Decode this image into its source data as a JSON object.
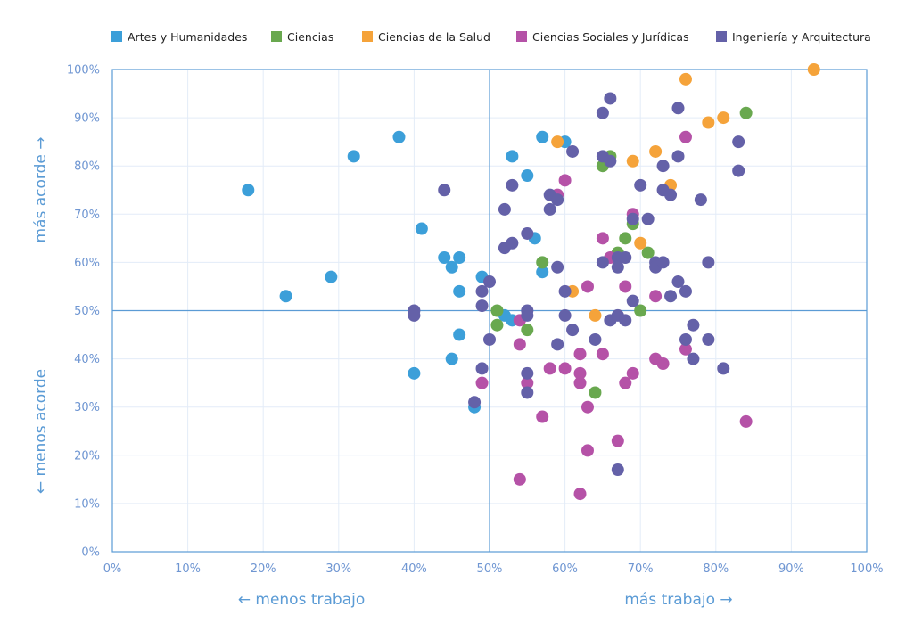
{
  "chart_data": {
    "type": "scatter",
    "xlim": [
      0,
      100
    ],
    "ylim": [
      0,
      100
    ],
    "grid": true,
    "legend_position": "top",
    "x_ticks": [
      "0%",
      "10%",
      "20%",
      "30%",
      "40%",
      "50%",
      "60%",
      "70%",
      "80%",
      "90%",
      "100%"
    ],
    "y_ticks": [
      "0%",
      "10%",
      "20%",
      "30%",
      "40%",
      "50%",
      "60%",
      "70%",
      "80%",
      "90%",
      "100%"
    ],
    "x_label_left": "← menos trabajo",
    "x_label_right": "más trabajo →",
    "y_label_top": "más acorde →",
    "y_label_bottom": "← menos acorde",
    "reference_lines": {
      "x": 50,
      "y": 50
    },
    "series": [
      {
        "name": "Artes y Humanidades",
        "color": "#3c9fd9",
        "points": [
          [
            18,
            75
          ],
          [
            23,
            53
          ],
          [
            29,
            57
          ],
          [
            32,
            82
          ],
          [
            38,
            86
          ],
          [
            40,
            37
          ],
          [
            41,
            67
          ],
          [
            44,
            61
          ],
          [
            45,
            59
          ],
          [
            45,
            40
          ],
          [
            46,
            61
          ],
          [
            46,
            54
          ],
          [
            46,
            45
          ],
          [
            48,
            30
          ],
          [
            49,
            57
          ],
          [
            52,
            49
          ],
          [
            53,
            48
          ],
          [
            53,
            82
          ],
          [
            55,
            78
          ],
          [
            56,
            65
          ],
          [
            57,
            58
          ],
          [
            57,
            86
          ],
          [
            60,
            85
          ]
        ]
      },
      {
        "name": "Ciencias",
        "color": "#69a84f",
        "points": [
          [
            51,
            50
          ],
          [
            51,
            47
          ],
          [
            55,
            46
          ],
          [
            57,
            60
          ],
          [
            64,
            33
          ],
          [
            65,
            80
          ],
          [
            66,
            82
          ],
          [
            67,
            62
          ],
          [
            68,
            65
          ],
          [
            69,
            68
          ],
          [
            70,
            50
          ],
          [
            71,
            62
          ],
          [
            84,
            91
          ]
        ]
      },
      {
        "name": "Ciencias de la Salud",
        "color": "#f5a33a",
        "points": [
          [
            59,
            85
          ],
          [
            61,
            54
          ],
          [
            64,
            49
          ],
          [
            69,
            81
          ],
          [
            70,
            64
          ],
          [
            72,
            83
          ],
          [
            74,
            76
          ],
          [
            76,
            98
          ],
          [
            79,
            89
          ],
          [
            81,
            90
          ],
          [
            93,
            100
          ]
        ]
      },
      {
        "name": "Ciencias Sociales y Jurídicas",
        "color": "#b552a7",
        "points": [
          [
            49,
            35
          ],
          [
            54,
            15
          ],
          [
            54,
            43
          ],
          [
            54,
            48
          ],
          [
            55,
            35
          ],
          [
            57,
            28
          ],
          [
            58,
            38
          ],
          [
            59,
            74
          ],
          [
            60,
            38
          ],
          [
            60,
            77
          ],
          [
            62,
            12
          ],
          [
            62,
            35
          ],
          [
            62,
            37
          ],
          [
            62,
            41
          ],
          [
            63,
            30
          ],
          [
            63,
            21
          ],
          [
            63,
            55
          ],
          [
            65,
            41
          ],
          [
            65,
            65
          ],
          [
            66,
            61
          ],
          [
            67,
            23
          ],
          [
            68,
            35
          ],
          [
            68,
            55
          ],
          [
            69,
            37
          ],
          [
            69,
            70
          ],
          [
            72,
            40
          ],
          [
            72,
            53
          ],
          [
            73,
            39
          ],
          [
            76,
            42
          ],
          [
            76,
            86
          ],
          [
            84,
            27
          ]
        ]
      },
      {
        "name": "Ingeniería y Arquitectura",
        "color": "#6461a8",
        "points": [
          [
            40,
            50
          ],
          [
            40,
            49
          ],
          [
            44,
            75
          ],
          [
            48,
            31
          ],
          [
            49,
            38
          ],
          [
            49,
            51
          ],
          [
            49,
            54
          ],
          [
            50,
            44
          ],
          [
            50,
            56
          ],
          [
            52,
            71
          ],
          [
            52,
            63
          ],
          [
            53,
            76
          ],
          [
            53,
            64
          ],
          [
            55,
            66
          ],
          [
            55,
            50
          ],
          [
            55,
            49
          ],
          [
            55,
            37
          ],
          [
            55,
            33
          ],
          [
            58,
            74
          ],
          [
            58,
            71
          ],
          [
            59,
            73
          ],
          [
            59,
            59
          ],
          [
            59,
            43
          ],
          [
            60,
            54
          ],
          [
            60,
            49
          ],
          [
            61,
            83
          ],
          [
            61,
            46
          ],
          [
            64,
            44
          ],
          [
            65,
            91
          ],
          [
            65,
            82
          ],
          [
            65,
            60
          ],
          [
            66,
            94
          ],
          [
            66,
            81
          ],
          [
            66,
            48
          ],
          [
            67,
            61
          ],
          [
            67,
            59
          ],
          [
            67,
            49
          ],
          [
            67,
            17
          ],
          [
            68,
            61
          ],
          [
            68,
            48
          ],
          [
            69,
            52
          ],
          [
            69,
            69
          ],
          [
            70,
            76
          ],
          [
            71,
            69
          ],
          [
            72,
            60
          ],
          [
            72,
            59
          ],
          [
            73,
            80
          ],
          [
            73,
            75
          ],
          [
            73,
            60
          ],
          [
            74,
            74
          ],
          [
            74,
            53
          ],
          [
            75,
            92
          ],
          [
            75,
            82
          ],
          [
            75,
            56
          ],
          [
            76,
            54
          ],
          [
            76,
            44
          ],
          [
            77,
            47
          ],
          [
            77,
            40
          ],
          [
            78,
            73
          ],
          [
            79,
            60
          ],
          [
            79,
            44
          ],
          [
            81,
            38
          ],
          [
            83,
            85
          ],
          [
            83,
            79
          ]
        ]
      }
    ]
  }
}
